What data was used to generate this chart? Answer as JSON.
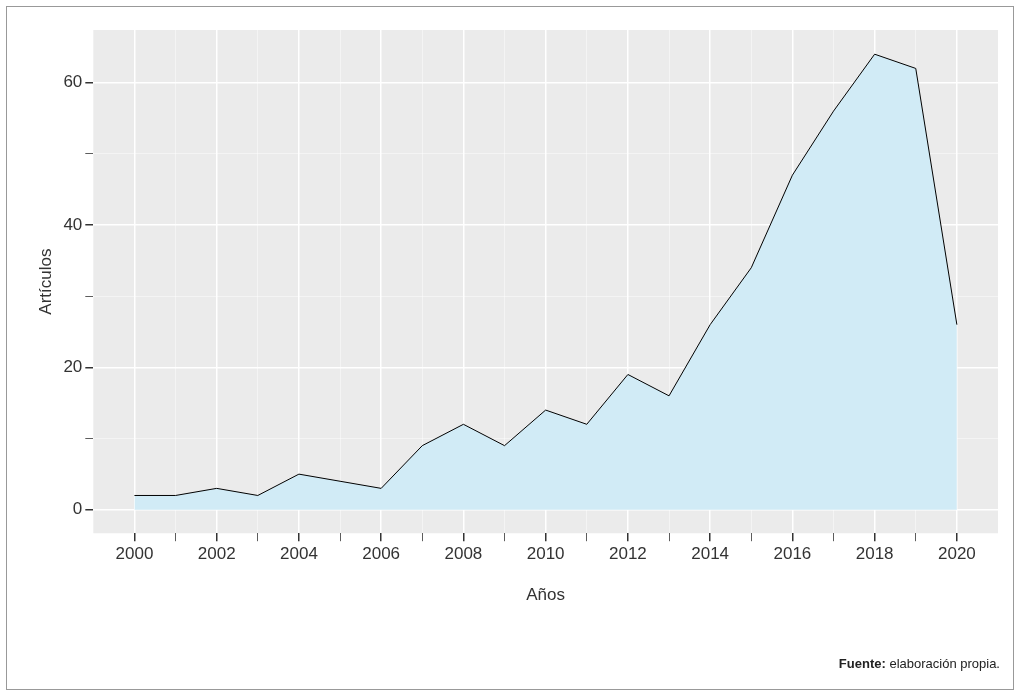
{
  "chart_data": {
    "type": "area",
    "xlabel": "Años",
    "ylabel": "Artículos",
    "x": [
      2000,
      2001,
      2002,
      2003,
      2004,
      2005,
      2006,
      2007,
      2008,
      2009,
      2010,
      2011,
      2012,
      2013,
      2014,
      2015,
      2016,
      2017,
      2018,
      2019,
      2020
    ],
    "series": [
      {
        "color": "#d1ebf6",
        "values": [
          2,
          2,
          3,
          2,
          5,
          4,
          3,
          9,
          12,
          9,
          14,
          12,
          19,
          16,
          26,
          34,
          47,
          56,
          64,
          62,
          26
        ]
      }
    ],
    "xlim": [
      1999,
      2021
    ],
    "xticks": [
      2000,
      {
        "value": 2001,
        "label": null
      },
      2002,
      {
        "value": 2003,
        "label": null
      },
      2004,
      {
        "value": 2005,
        "label": null
      },
      2006,
      {
        "value": 2007,
        "label": null
      },
      2008,
      {
        "value": 2009,
        "label": null
      },
      2010,
      {
        "value": 2011,
        "label": null
      },
      2012,
      {
        "value": 2013,
        "label": null
      },
      2014,
      {
        "value": 2015,
        "label": null
      },
      2016,
      {
        "value": 2017,
        "label": null
      },
      2018,
      {
        "value": 2019,
        "label": null
      },
      2020
    ],
    "ylim": [
      -3.3,
      67.4
    ],
    "yticks": [
      0,
      {
        "value": 10,
        "label": null
      },
      20,
      {
        "value": 30,
        "label": null
      },
      40,
      {
        "value": 50,
        "label": null
      },
      60
    ],
    "grid": true,
    "annotations": [
      "Fuente: elaboración propia."
    ]
  }
}
